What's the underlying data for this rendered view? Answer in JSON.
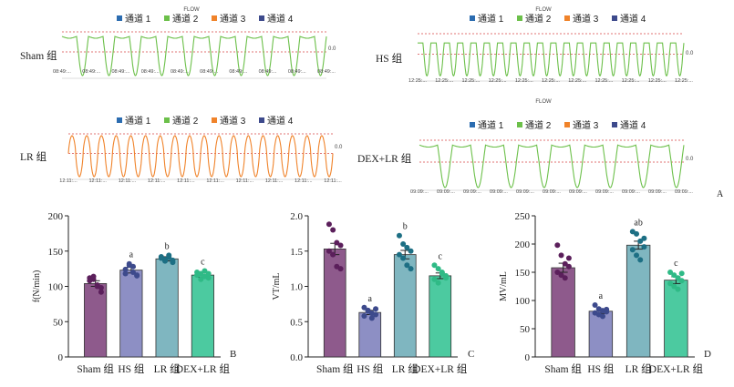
{
  "legend_channels": [
    "通道 1",
    "通道 2",
    "通道 3",
    "通道 4"
  ],
  "colors": {
    "ch1": "#2b6cb0",
    "ch2": "#6cc04a",
    "ch3": "#f0832a",
    "ch4": "#3d4a8c",
    "dashed": "#d64545",
    "axis": "#333333",
    "sham": "#8e5a8c",
    "hs": "#8d8fc4",
    "lr": "#7fb6c0",
    "dex": "#4ccaa0",
    "sham_dot": "#5b1f5b",
    "hs_dot": "#3d4a8c",
    "lr_dot": "#1d6f84",
    "dex_dot": "#2fba86"
  },
  "flow_title": "FLOW",
  "flow_value_label": "0.0",
  "panel_letters": {
    "a": "A",
    "b": "B",
    "c": "C",
    "d": "D"
  },
  "chart_data": [
    {
      "type": "line",
      "name": "Sham 组",
      "title": "FLOW",
      "series": [
        {
          "name": "通道 2",
          "color": "#6cc04a"
        }
      ],
      "wave": {
        "cycles": 10,
        "shape": "deep"
      },
      "x_tick_labels": [
        "08:49:...",
        "08:49:...",
        "08:49:...",
        "08:49:...",
        "08:49:...",
        "08:49:...",
        "08:49:...",
        "08:49:...",
        "08:49:...",
        "08:49:..."
      ]
    },
    {
      "type": "line",
      "name": "HS 组",
      "title": "FLOW",
      "series": [
        {
          "name": "通道 2",
          "color": "#6cc04a"
        }
      ],
      "wave": {
        "cycles": 20,
        "shape": "shallow"
      },
      "x_tick_labels": [
        "12:25:...",
        "12:25:...",
        "12:25:...",
        "12:25:...",
        "12:25:...",
        "12:25:...",
        "12:25:...",
        "12:25:...",
        "12:25:...",
        "12:25:...",
        "12:25:..."
      ]
    },
    {
      "type": "line",
      "name": "LR 组",
      "title": "",
      "series": [
        {
          "name": "通道 3",
          "color": "#f0832a"
        }
      ],
      "wave": {
        "cycles": 18,
        "shape": "spiky"
      },
      "x_tick_labels": [
        "12:11:...",
        "12:11:...",
        "12:11:...",
        "12:11:...",
        "12:11:...",
        "12:11:...",
        "12:11:...",
        "12:11:...",
        "12:11:...",
        "12:11:..."
      ]
    },
    {
      "type": "line",
      "name": "DEX+LR 组",
      "title": "FLOW",
      "series": [
        {
          "name": "通道 2",
          "color": "#6cc04a"
        }
      ],
      "wave": {
        "cycles": 8,
        "shape": "deep"
      },
      "x_tick_labels": [
        "09:09:...",
        "09:09:...",
        "09:09:...",
        "09:09:...",
        "09:09:...",
        "09:09:...",
        "09:09:...",
        "09:09:...",
        "09:09:...",
        "09:09:...",
        "09:09:..."
      ]
    },
    {
      "type": "bar",
      "panel": "B",
      "ylabel": "f(N/min)",
      "categories": [
        "Sham 组",
        "HS 组",
        "LR 组",
        "DEX+LR 组"
      ],
      "values": [
        104,
        123,
        139,
        116
      ],
      "errors": [
        4,
        4,
        3,
        3
      ],
      "points": [
        [
          112,
          110,
          100,
          92,
          108,
          114,
          102,
          98
        ],
        [
          118,
          130,
          128,
          115,
          124,
          132,
          120,
          116
        ],
        [
          142,
          138,
          144,
          134,
          140,
          136,
          141,
          137
        ],
        [
          120,
          118,
          114,
          112,
          116,
          110,
          122,
          118
        ]
      ],
      "sig": [
        "",
        "a",
        "b",
        "c"
      ],
      "ylim": [
        0,
        200
      ],
      "yticks": [
        0,
        50,
        100,
        150,
        200
      ]
    },
    {
      "type": "bar",
      "panel": "C",
      "ylabel": "VT/mL",
      "categories": [
        "Sham 组",
        "HS 组",
        "LR 组",
        "DEX+LR 组"
      ],
      "values": [
        1.53,
        0.63,
        1.45,
        1.15
      ],
      "errors": [
        0.08,
        0.03,
        0.06,
        0.04
      ],
      "points": [
        [
          1.88,
          1.8,
          1.62,
          1.58,
          1.5,
          1.45,
          1.28,
          1.25
        ],
        [
          0.7,
          0.65,
          0.62,
          0.6,
          0.58,
          0.66,
          0.55,
          0.68
        ],
        [
          1.72,
          1.6,
          1.55,
          1.5,
          1.45,
          1.4,
          1.3,
          1.25
        ],
        [
          1.3,
          1.25,
          1.2,
          1.15,
          1.1,
          1.05,
          1.18,
          1.12
        ]
      ],
      "sig": [
        "",
        "a",
        "b",
        "c"
      ],
      "ylim": [
        0,
        2.0
      ],
      "yticks": [
        0.0,
        0.5,
        1.0,
        1.5,
        2.0
      ]
    },
    {
      "type": "bar",
      "panel": "D",
      "ylabel": "MV/mL",
      "categories": [
        "Sham 组",
        "HS 组",
        "LR 组",
        "DEX+LR 组"
      ],
      "values": [
        158,
        81,
        198,
        136
      ],
      "errors": [
        8,
        4,
        7,
        6
      ],
      "points": [
        [
          198,
          180,
          165,
          160,
          150,
          145,
          140,
          175
        ],
        [
          92,
          85,
          82,
          80,
          78,
          75,
          72,
          84
        ],
        [
          222,
          218,
          205,
          195,
          190,
          180,
          172,
          210
        ],
        [
          150,
          145,
          140,
          135,
          130,
          125,
          120,
          148
        ]
      ],
      "sig": [
        "",
        "a",
        "ab",
        "c"
      ],
      "ylim": [
        0,
        250
      ],
      "yticks": [
        0,
        50,
        100,
        150,
        200,
        250
      ]
    }
  ]
}
